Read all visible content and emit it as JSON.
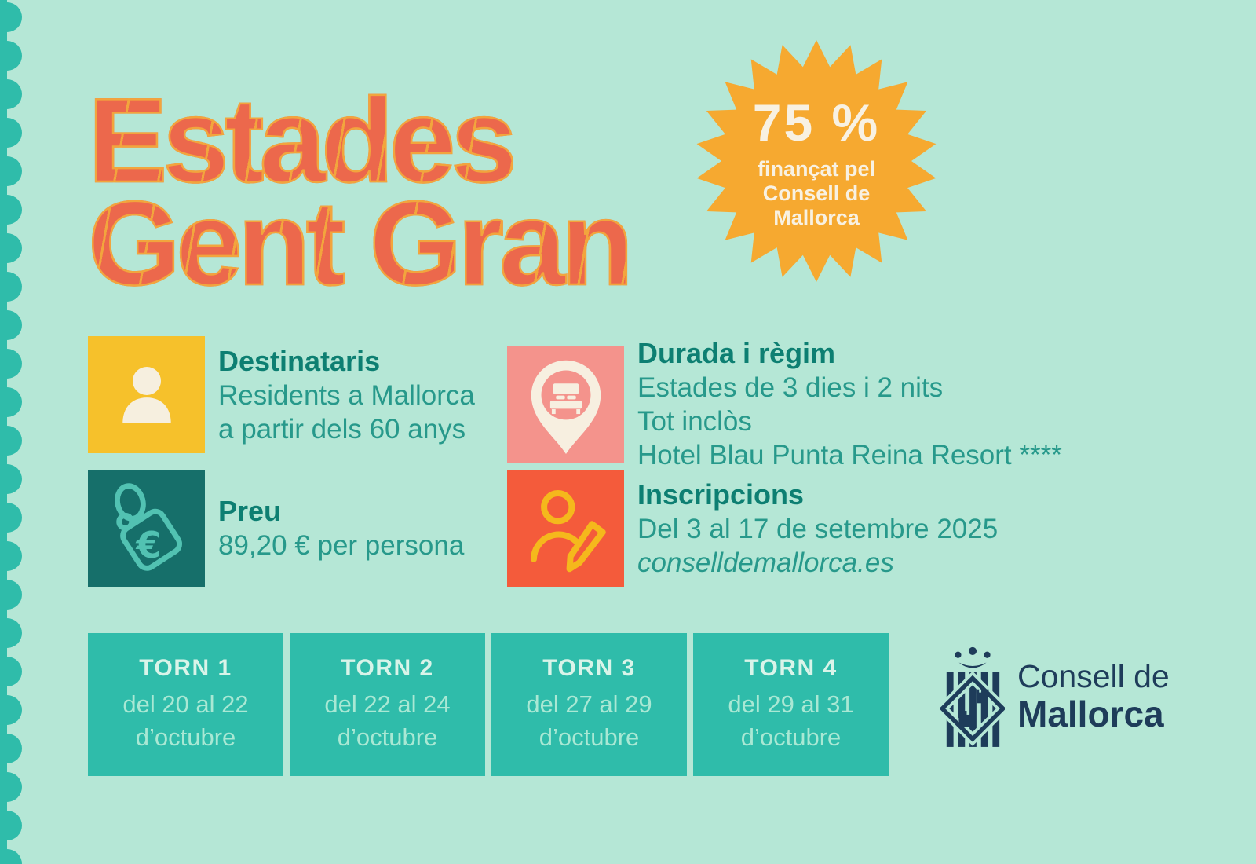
{
  "poster": {
    "background_color": "#b5e7d6",
    "accent_teal": "#2fbcaa",
    "title_fill": "#ec684c",
    "title_outline": "#f2a53d",
    "heading_color": "#0d7f72",
    "body_color": "#27998b",
    "logo_navy": "#1e3c5a"
  },
  "title": {
    "line1": "Estades",
    "line2": "Gent Gran"
  },
  "badge": {
    "icon": "starburst-icon",
    "bg_color": "#f6a930",
    "text_color": "#f8f1e2",
    "percent": "75 %",
    "line1": "finançat pel",
    "line2": "Consell de",
    "line3": "Mallorca"
  },
  "info_blocks": {
    "destinataris": {
      "icon": "person-icon",
      "icon_bg": "#f6c12b",
      "title": "Destinataris",
      "line1": "Residents a Mallorca",
      "line2": "a partir dels 60 anys"
    },
    "durada": {
      "icon": "bed-pin-icon",
      "icon_bg": "#f4938c",
      "title": "Durada i règim",
      "line1": "Estades de 3 dies i 2 nits",
      "line2": "Tot inclòs",
      "line3": "Hotel Blau Punta Reina Resort ****"
    },
    "preu": {
      "icon": "price-tag-icon",
      "icon_bg": "#166f6a",
      "title": "Preu",
      "line1": "89,20 € per persona"
    },
    "inscripcions": {
      "icon": "person-edit-icon",
      "icon_bg": "#f45b3b",
      "title": "Inscripcions",
      "line1": "Del 3 al 17 de setembre 2025",
      "line2": "conselldemallorca.es"
    }
  },
  "torns": [
    {
      "title": "TORN 1",
      "dates": "del 20 al 22",
      "month": "d’octubre"
    },
    {
      "title": "TORN 2",
      "dates": "del 22 al 24",
      "month": "d’octubre"
    },
    {
      "title": "TORN 3",
      "dates": "del 27 al 29",
      "month": "d’octubre"
    },
    {
      "title": "TORN 4",
      "dates": "del 29 al 31",
      "month": "d’octubre"
    }
  ],
  "logo": {
    "line1": "Consell de",
    "line2": "Mallorca"
  }
}
